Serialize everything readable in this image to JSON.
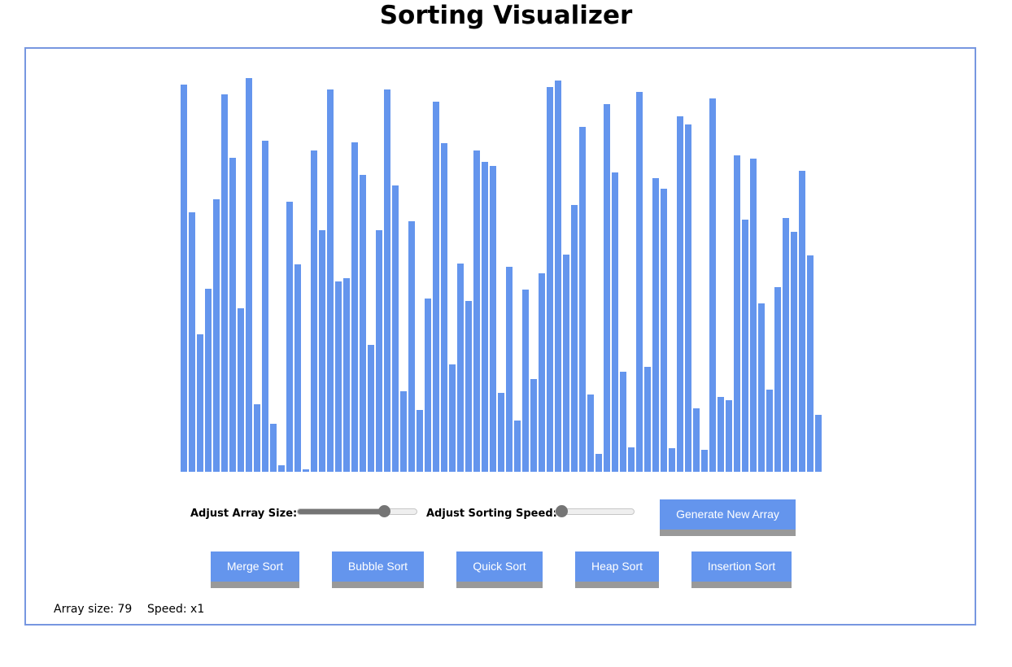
{
  "title": "Sorting Visualizer",
  "controls": {
    "size_label": "Adjust Array Size:",
    "speed_label": "Adjust Sorting Speed:",
    "generate_label": "Generate New Array",
    "size_slider_fraction": 0.75,
    "speed_slider_fraction": 0.0
  },
  "sort_buttons": [
    {
      "label": "Merge Sort"
    },
    {
      "label": "Bubble Sort"
    },
    {
      "label": "Quick Sort"
    },
    {
      "label": "Heap Sort"
    },
    {
      "label": "Insertion Sort"
    }
  ],
  "status": {
    "array_size": "Array size: 79",
    "speed": "Speed: x1"
  },
  "colors": {
    "bar": "#6495ed",
    "button": "#6495ed",
    "button_shadow": "#999999",
    "panel_border": "#7797e0"
  },
  "array": [
    476,
    319,
    169,
    225,
    335,
    464,
    386,
    201,
    484,
    83,
    407,
    59,
    8,
    332,
    255,
    3,
    395,
    297,
    470,
    234,
    238,
    405,
    365,
    156,
    297,
    470,
    352,
    99,
    308,
    76,
    213,
    455,
    404,
    132,
    256,
    210,
    395,
    381,
    376,
    97,
    252,
    63,
    224,
    114,
    244,
    473,
    481,
    267,
    328,
    424,
    95,
    22,
    452,
    368,
    123,
    30,
    467,
    129,
    361,
    348,
    29,
    437,
    427,
    78,
    27,
    459,
    92,
    88,
    389,
    310,
    385,
    207,
    101,
    227,
    312,
    295,
    370,
    266,
    70
  ]
}
